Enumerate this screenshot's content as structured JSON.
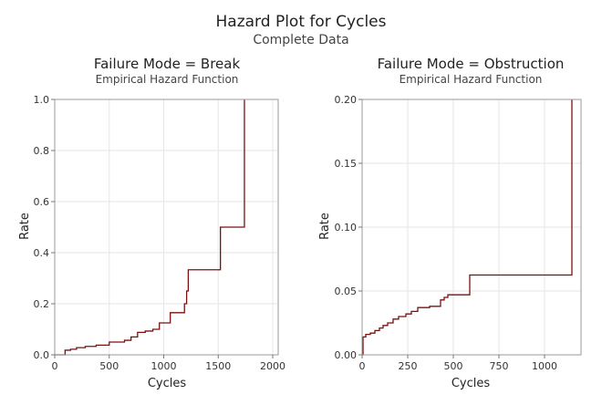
{
  "figure": {
    "title": "Hazard Plot for Cycles",
    "subtitle": "Complete Data"
  },
  "chart_data": [
    {
      "type": "line",
      "step": true,
      "title": "Failure Mode = Break",
      "subtitle": "Empirical Hazard Function",
      "xlabel": "Cycles",
      "ylabel": "Rate",
      "xlim": [
        0,
        2050
      ],
      "ylim": [
        0,
        1.0
      ],
      "xticks": [
        0,
        500,
        1000,
        1500,
        2000
      ],
      "yticks": [
        0,
        0.2,
        0.4,
        0.6,
        0.8,
        1.0
      ],
      "xtick_labels": [
        "0",
        "500",
        "1000",
        "1500",
        "2000"
      ],
      "ytick_labels": [
        "0.0",
        "0.2",
        "0.4",
        "0.6",
        "0.8",
        "1.0"
      ],
      "grid": true,
      "line_color": "#7b1010",
      "x": [
        0,
        95,
        145,
        200,
        280,
        380,
        500,
        640,
        700,
        760,
        830,
        900,
        960,
        1060,
        1190,
        1210,
        1225,
        1520,
        1740
      ],
      "y": [
        0.0,
        0.018,
        0.022,
        0.028,
        0.033,
        0.038,
        0.05,
        0.057,
        0.07,
        0.088,
        0.093,
        0.1,
        0.125,
        0.165,
        0.2,
        0.25,
        0.333,
        0.5,
        1.0
      ]
    },
    {
      "type": "line",
      "step": true,
      "title": "Failure Mode = Obstruction",
      "subtitle": "Empirical Hazard Function",
      "xlabel": "Cycles",
      "ylabel": "Rate",
      "xlim": [
        0,
        1200
      ],
      "ylim": [
        0,
        0.2
      ],
      "xticks": [
        0,
        250,
        500,
        750,
        1000
      ],
      "yticks": [
        0,
        0.05,
        0.1,
        0.15,
        0.2
      ],
      "xtick_labels": [
        "0",
        "250",
        "500",
        "750",
        "1000"
      ],
      "ytick_labels": [
        "0.00",
        "0.05",
        "0.10",
        "0.15",
        "0.20"
      ],
      "grid": true,
      "line_color": "#7b1010",
      "x": [
        0,
        5,
        20,
        45,
        70,
        95,
        115,
        140,
        170,
        200,
        240,
        270,
        305,
        370,
        430,
        450,
        470,
        590,
        1150
      ],
      "y": [
        0.0,
        0.014,
        0.016,
        0.017,
        0.019,
        0.021,
        0.023,
        0.025,
        0.028,
        0.03,
        0.032,
        0.034,
        0.037,
        0.038,
        0.043,
        0.045,
        0.047,
        0.0625,
        0.2
      ]
    }
  ]
}
